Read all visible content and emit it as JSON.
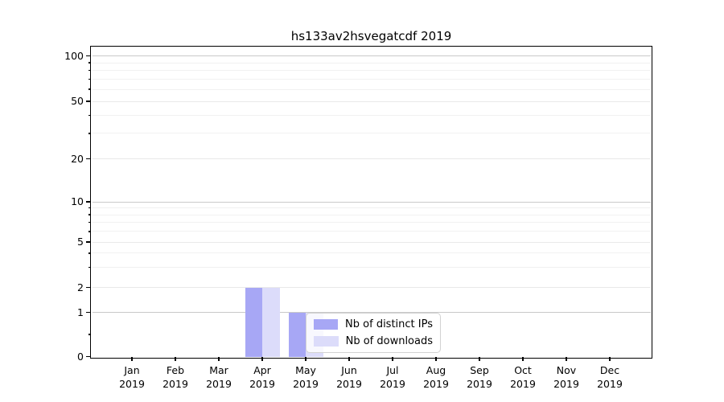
{
  "chart_data": {
    "type": "bar",
    "title": "hs133av2hsvegatcdf 2019",
    "x_tick_labels": [
      {
        "line1": "Jan",
        "line2": "2019"
      },
      {
        "line1": "Feb",
        "line2": "2019"
      },
      {
        "line1": "Mar",
        "line2": "2019"
      },
      {
        "line1": "Apr",
        "line2": "2019"
      },
      {
        "line1": "May",
        "line2": "2019"
      },
      {
        "line1": "Jun",
        "line2": "2019"
      },
      {
        "line1": "Jul",
        "line2": "2019"
      },
      {
        "line1": "Aug",
        "line2": "2019"
      },
      {
        "line1": "Sep",
        "line2": "2019"
      },
      {
        "line1": "Oct",
        "line2": "2019"
      },
      {
        "line1": "Nov",
        "line2": "2019"
      },
      {
        "line1": "Dec",
        "line2": "2019"
      }
    ],
    "series": [
      {
        "name": "Nb of distinct IPs",
        "color": "#a7a7f5",
        "values": [
          0,
          0,
          0,
          2,
          1,
          0,
          0,
          0,
          0,
          0,
          0,
          0
        ]
      },
      {
        "name": "Nb of downloads",
        "color": "#dcdcfa",
        "values": [
          0,
          0,
          0,
          2,
          1,
          0,
          0,
          0,
          0,
          0,
          0,
          0
        ]
      }
    ],
    "y_axis": {
      "scale": "symlog",
      "ticks": [
        0,
        1,
        2,
        5,
        10,
        20,
        50,
        100
      ],
      "minor_ticks": [
        3,
        4,
        6,
        7,
        8,
        9,
        30,
        40,
        60,
        70,
        80,
        90
      ],
      "minor_ticks_no_grid": [
        0.5
      ],
      "emphasized_grid_ticks": [
        1,
        10,
        100
      ],
      "ylim": [
        0,
        115
      ]
    },
    "grid": "on",
    "legend_position": "lower-center",
    "colors": {
      "grid_major": "#c9c9c9",
      "grid_minor": "#f1f1f1",
      "axis": "#000000",
      "background": "#ffffff"
    }
  }
}
